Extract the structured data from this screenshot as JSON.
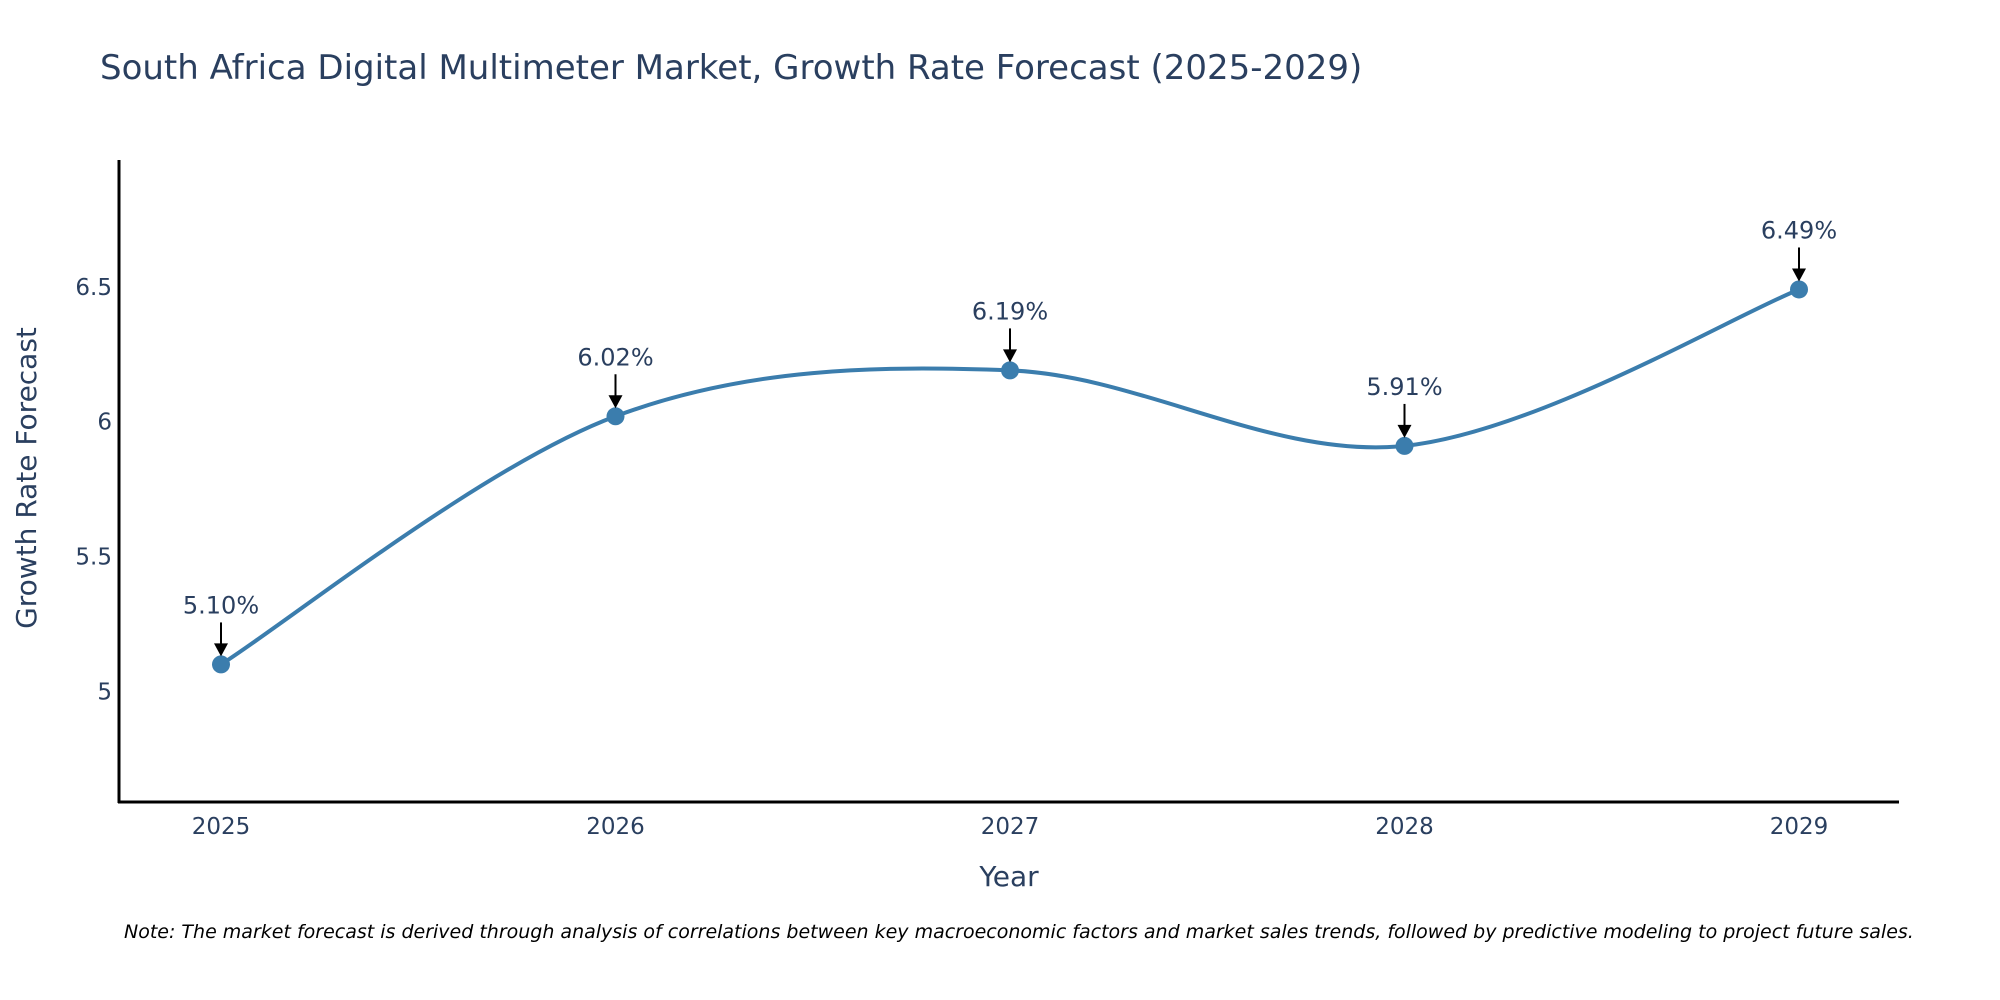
{
  "colors": {
    "series": "#3b7dad",
    "text": "#2a3f5f",
    "axis": "#000000",
    "arrow": "#000000"
  },
  "note": "Note: The market forecast is derived through analysis of correlations between key macroeconomic factors and market sales trends, followed by predictive modeling to project future sales.",
  "chart_data": {
    "type": "line",
    "title": "South Africa Digital Multimeter Market, Growth Rate Forecast (2025-2029)",
    "xlabel": "Year",
    "ylabel": "Growth Rate Forecast",
    "categories": [
      "2025",
      "2026",
      "2027",
      "2028",
      "2029"
    ],
    "values": [
      5.1,
      6.02,
      6.19,
      5.91,
      6.49
    ],
    "data_labels": [
      "5.10%",
      "6.02%",
      "6.19%",
      "5.91%",
      "6.49%"
    ],
    "y_ticks": [
      5,
      5.5,
      6,
      6.5
    ],
    "y_tick_labels": [
      "5",
      "5.5",
      "6",
      "6.5"
    ],
    "ylim": [
      4.59,
      6.97
    ],
    "line_shape": "spline",
    "grid": false,
    "legend": "none"
  }
}
